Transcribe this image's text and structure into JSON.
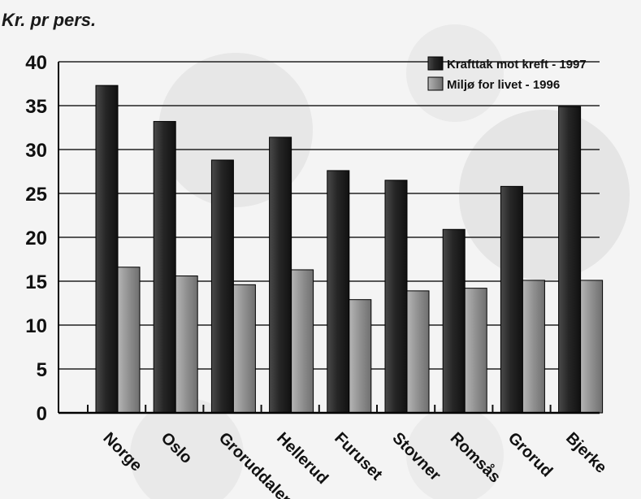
{
  "chart_data": {
    "type": "bar",
    "ylabel": "Kr. pr pers.",
    "ylim": [
      0,
      40
    ],
    "yticks": [
      "0",
      "5",
      "10",
      "15",
      "20",
      "25",
      "30",
      "35",
      "40"
    ],
    "categories": [
      "Norge",
      "Oslo",
      "Groruddalen",
      "Hellerud",
      "Furuset",
      "Stovner",
      "Romsås",
      "Grorud",
      "Bjerke"
    ],
    "series": [
      {
        "name": "Krafttak mot kreft - 1997",
        "values": [
          37.3,
          33.2,
          28.8,
          31.4,
          27.6,
          26.5,
          20.9,
          25.8,
          34.9
        ],
        "color": "#2e2e2e"
      },
      {
        "name": "Miljø for livet - 1996",
        "values": [
          16.6,
          15.6,
          14.6,
          16.3,
          12.9,
          13.9,
          14.2,
          15.1,
          15.1
        ],
        "color": "#8c8c8c"
      }
    ],
    "grid": true,
    "legend": "top-right"
  }
}
